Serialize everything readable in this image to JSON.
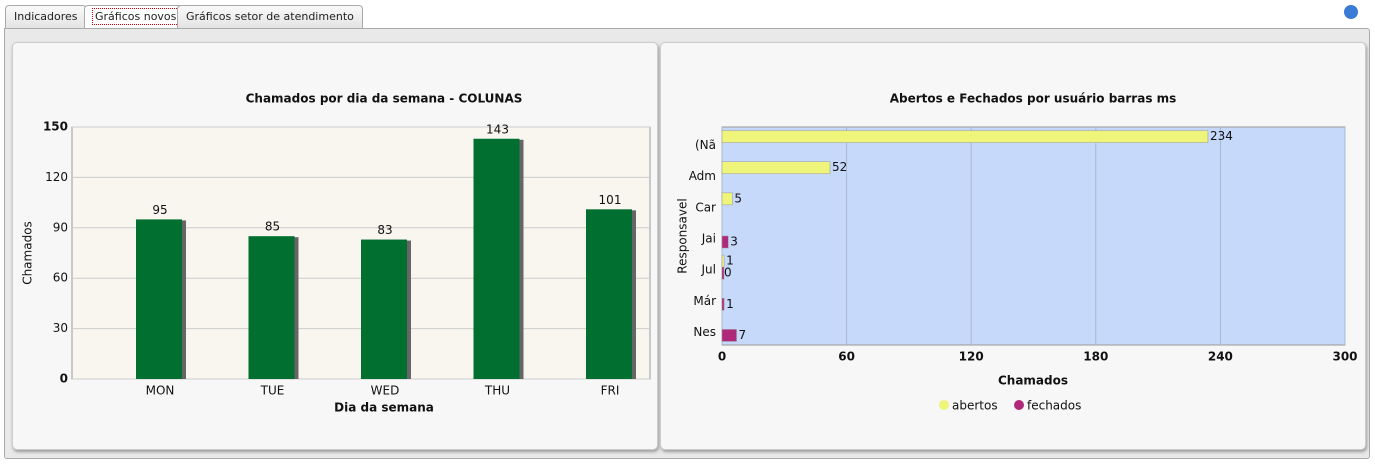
{
  "tabs": [
    "Indicadores",
    "Gráficos novos",
    "Gráficos setor de atendimento"
  ],
  "chart_data": [
    {
      "type": "bar",
      "title": "Chamados por dia da semana - COLUNAS",
      "x_label": "Dia da semana",
      "y_label": "Chamados",
      "categories": [
        "MON",
        "TUE",
        "WED",
        "THU",
        "FRI"
      ],
      "values": [
        95,
        85,
        83,
        143,
        101
      ],
      "color": "#006f2f",
      "ylim": [
        0,
        150
      ],
      "yticks": [
        0,
        30,
        60,
        90,
        120,
        150
      ],
      "grid": true
    },
    {
      "type": "barh",
      "title": "Abertos e Fechados por usuário barras ms",
      "x_label": "Chamados",
      "y_label": "Responsavel",
      "categories": [
        "(Nã",
        "Adm",
        "Car",
        "Jai",
        "Jul",
        "Már",
        "Nes"
      ],
      "series": [
        {
          "name": "abertos",
          "color": "#eef57a",
          "values": [
            234,
            52,
            5,
            null,
            1,
            null,
            null
          ]
        },
        {
          "name": "fechados",
          "color": "#b0287a",
          "values": [
            null,
            null,
            null,
            3,
            0,
            1,
            7
          ]
        }
      ],
      "xlim": [
        0,
        300
      ],
      "xticks": [
        0,
        60,
        120,
        180,
        240,
        300
      ],
      "grid": true,
      "legend": "bottom"
    }
  ]
}
